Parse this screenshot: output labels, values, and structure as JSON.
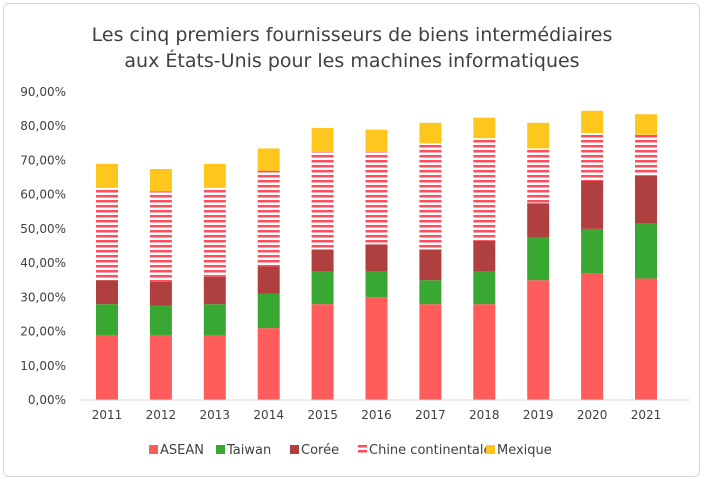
{
  "chart_data": {
    "type": "bar",
    "stacked": true,
    "title": [
      "Les cinq premiers fournisseurs de biens intermédiaires",
      "aux États-Unis pour les machines informatiques"
    ],
    "categories": [
      "2011",
      "2012",
      "2013",
      "2014",
      "2015",
      "2016",
      "2017",
      "2018",
      "2019",
      "2020",
      "2021"
    ],
    "ylim": [
      0,
      90
    ],
    "yticks": [
      "0,00%",
      "10,00%",
      "20,00%",
      "30,00%",
      "40,00%",
      "50,00%",
      "60,00%",
      "70,00%",
      "80,00%",
      "90,00%"
    ],
    "grid": false,
    "legend_position": "bottom",
    "series": [
      {
        "name": "ASEAN",
        "color": "#ff5c5c",
        "values": [
          19,
          19,
          19,
          21,
          28,
          30,
          28,
          28,
          35,
          37,
          35.5
        ]
      },
      {
        "name": "Taiwan",
        "color": "#38a832",
        "values": [
          9,
          8.5,
          9,
          10,
          9.5,
          7.5,
          7,
          9.5,
          12.5,
          13,
          16
        ]
      },
      {
        "name": "Corée",
        "color": "#b04040",
        "values": [
          7,
          7,
          8,
          8,
          6.5,
          8,
          9,
          9,
          10,
          14,
          14
        ]
      },
      {
        "name": "Chine continentale",
        "color": "#ff4d5e",
        "pattern": "horizontal-stripes",
        "values": [
          27,
          26.5,
          26,
          28,
          28.5,
          27,
          31,
          30,
          16,
          14,
          12
        ]
      },
      {
        "name": "Mexique",
        "color": "#ffc61e",
        "values": [
          7,
          6.5,
          7,
          6.5,
          7,
          6.5,
          6,
          6,
          7.5,
          6.5,
          6
        ]
      }
    ]
  }
}
